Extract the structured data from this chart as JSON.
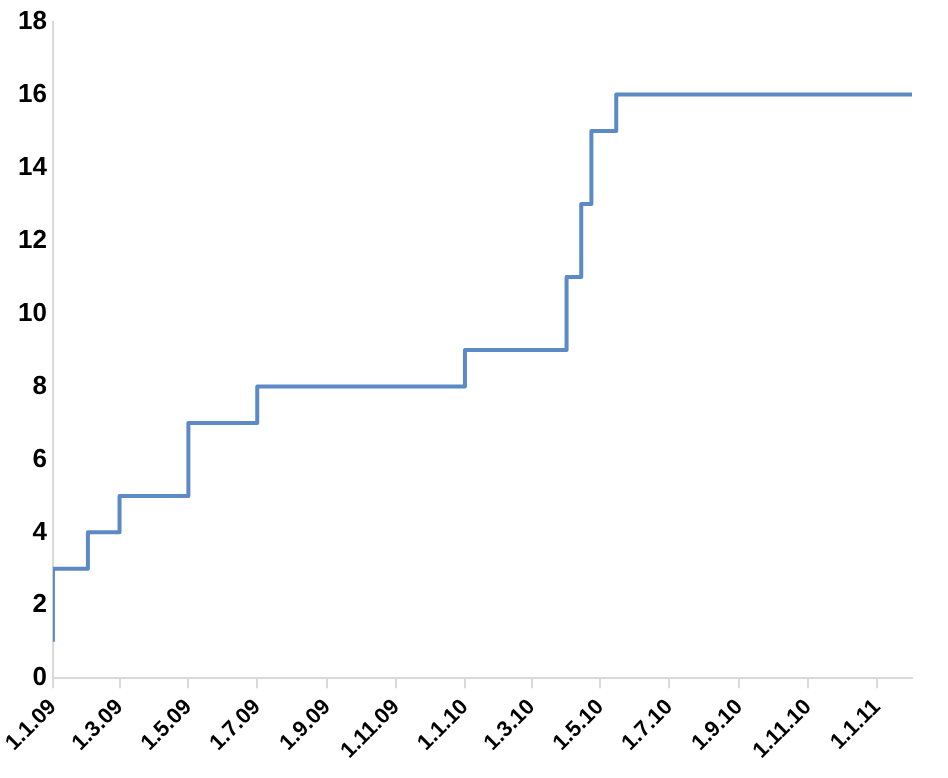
{
  "chart_data": {
    "type": "step",
    "x": [
      "2009-01-01",
      "2009-01-01",
      "2009-02-01",
      "2009-03-01",
      "2009-05-01",
      "2009-07-01",
      "2010-01-01",
      "2010-04-01",
      "2010-04-14",
      "2010-04-23",
      "2010-05-15",
      "2011-02-01"
    ],
    "series": [
      {
        "color": "#5b8ac4",
        "values": [
          1,
          3,
          4,
          5,
          7,
          8,
          9,
          11,
          13,
          15,
          16,
          16
        ]
      }
    ],
    "xlim": [
      "2009-01-01",
      "2011-02-01"
    ],
    "xticks": [
      {
        "value": "2009-01-01",
        "label": "1.1.09"
      },
      {
        "value": "2009-03-01",
        "label": "1.3.09"
      },
      {
        "value": "2009-05-01",
        "label": "1.5.09"
      },
      {
        "value": "2009-07-01",
        "label": "1.7.09"
      },
      {
        "value": "2009-09-01",
        "label": "1.9.09"
      },
      {
        "value": "2009-11-01",
        "label": "1.11.09"
      },
      {
        "value": "2010-01-01",
        "label": "1.1.10"
      },
      {
        "value": "2010-03-01",
        "label": "1.3.10"
      },
      {
        "value": "2010-05-01",
        "label": "1.5.10"
      },
      {
        "value": "2010-07-01",
        "label": "1.7.10"
      },
      {
        "value": "2010-09-01",
        "label": "1.9.10"
      },
      {
        "value": "2010-11-01",
        "label": "1.11.10"
      },
      {
        "value": "2011-01-01",
        "label": "1.1.11"
      }
    ],
    "ylim": [
      0,
      18
    ],
    "yticks": [
      0,
      2,
      4,
      6,
      8,
      10,
      12,
      14,
      16,
      18
    ],
    "grid": false,
    "legend": false,
    "marker": "none",
    "line_style": "solid"
  }
}
